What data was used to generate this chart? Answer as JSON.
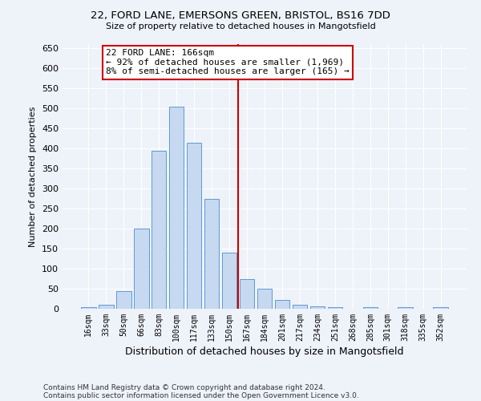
{
  "title_line1": "22, FORD LANE, EMERSONS GREEN, BRISTOL, BS16 7DD",
  "title_line2": "Size of property relative to detached houses in Mangotsfield",
  "xlabel": "Distribution of detached houses by size in Mangotsfield",
  "ylabel": "Number of detached properties",
  "categories": [
    "16sqm",
    "33sqm",
    "50sqm",
    "66sqm",
    "83sqm",
    "100sqm",
    "117sqm",
    "133sqm",
    "150sqm",
    "167sqm",
    "184sqm",
    "201sqm",
    "217sqm",
    "234sqm",
    "251sqm",
    "268sqm",
    "285sqm",
    "301sqm",
    "318sqm",
    "335sqm",
    "352sqm"
  ],
  "values": [
    5,
    10,
    45,
    200,
    395,
    505,
    415,
    275,
    140,
    75,
    50,
    22,
    10,
    7,
    5,
    0,
    5,
    0,
    5,
    0,
    5
  ],
  "bar_color": "#c6d9f0",
  "bar_edge_color": "#5b9bd5",
  "vline_color": "#cc0000",
  "annotation_text": "22 FORD LANE: 166sqm\n← 92% of detached houses are smaller (1,969)\n8% of semi-detached houses are larger (165) →",
  "annotation_box_color": "#ffffff",
  "annotation_box_edge_color": "#cc0000",
  "ylim": [
    0,
    660
  ],
  "yticks": [
    0,
    50,
    100,
    150,
    200,
    250,
    300,
    350,
    400,
    450,
    500,
    550,
    600,
    650
  ],
  "background_color": "#eef2f9",
  "grid_color": "#ffffff",
  "footer_line1": "Contains HM Land Registry data © Crown copyright and database right 2024.",
  "footer_line2": "Contains public sector information licensed under the Open Government Licence v3.0."
}
